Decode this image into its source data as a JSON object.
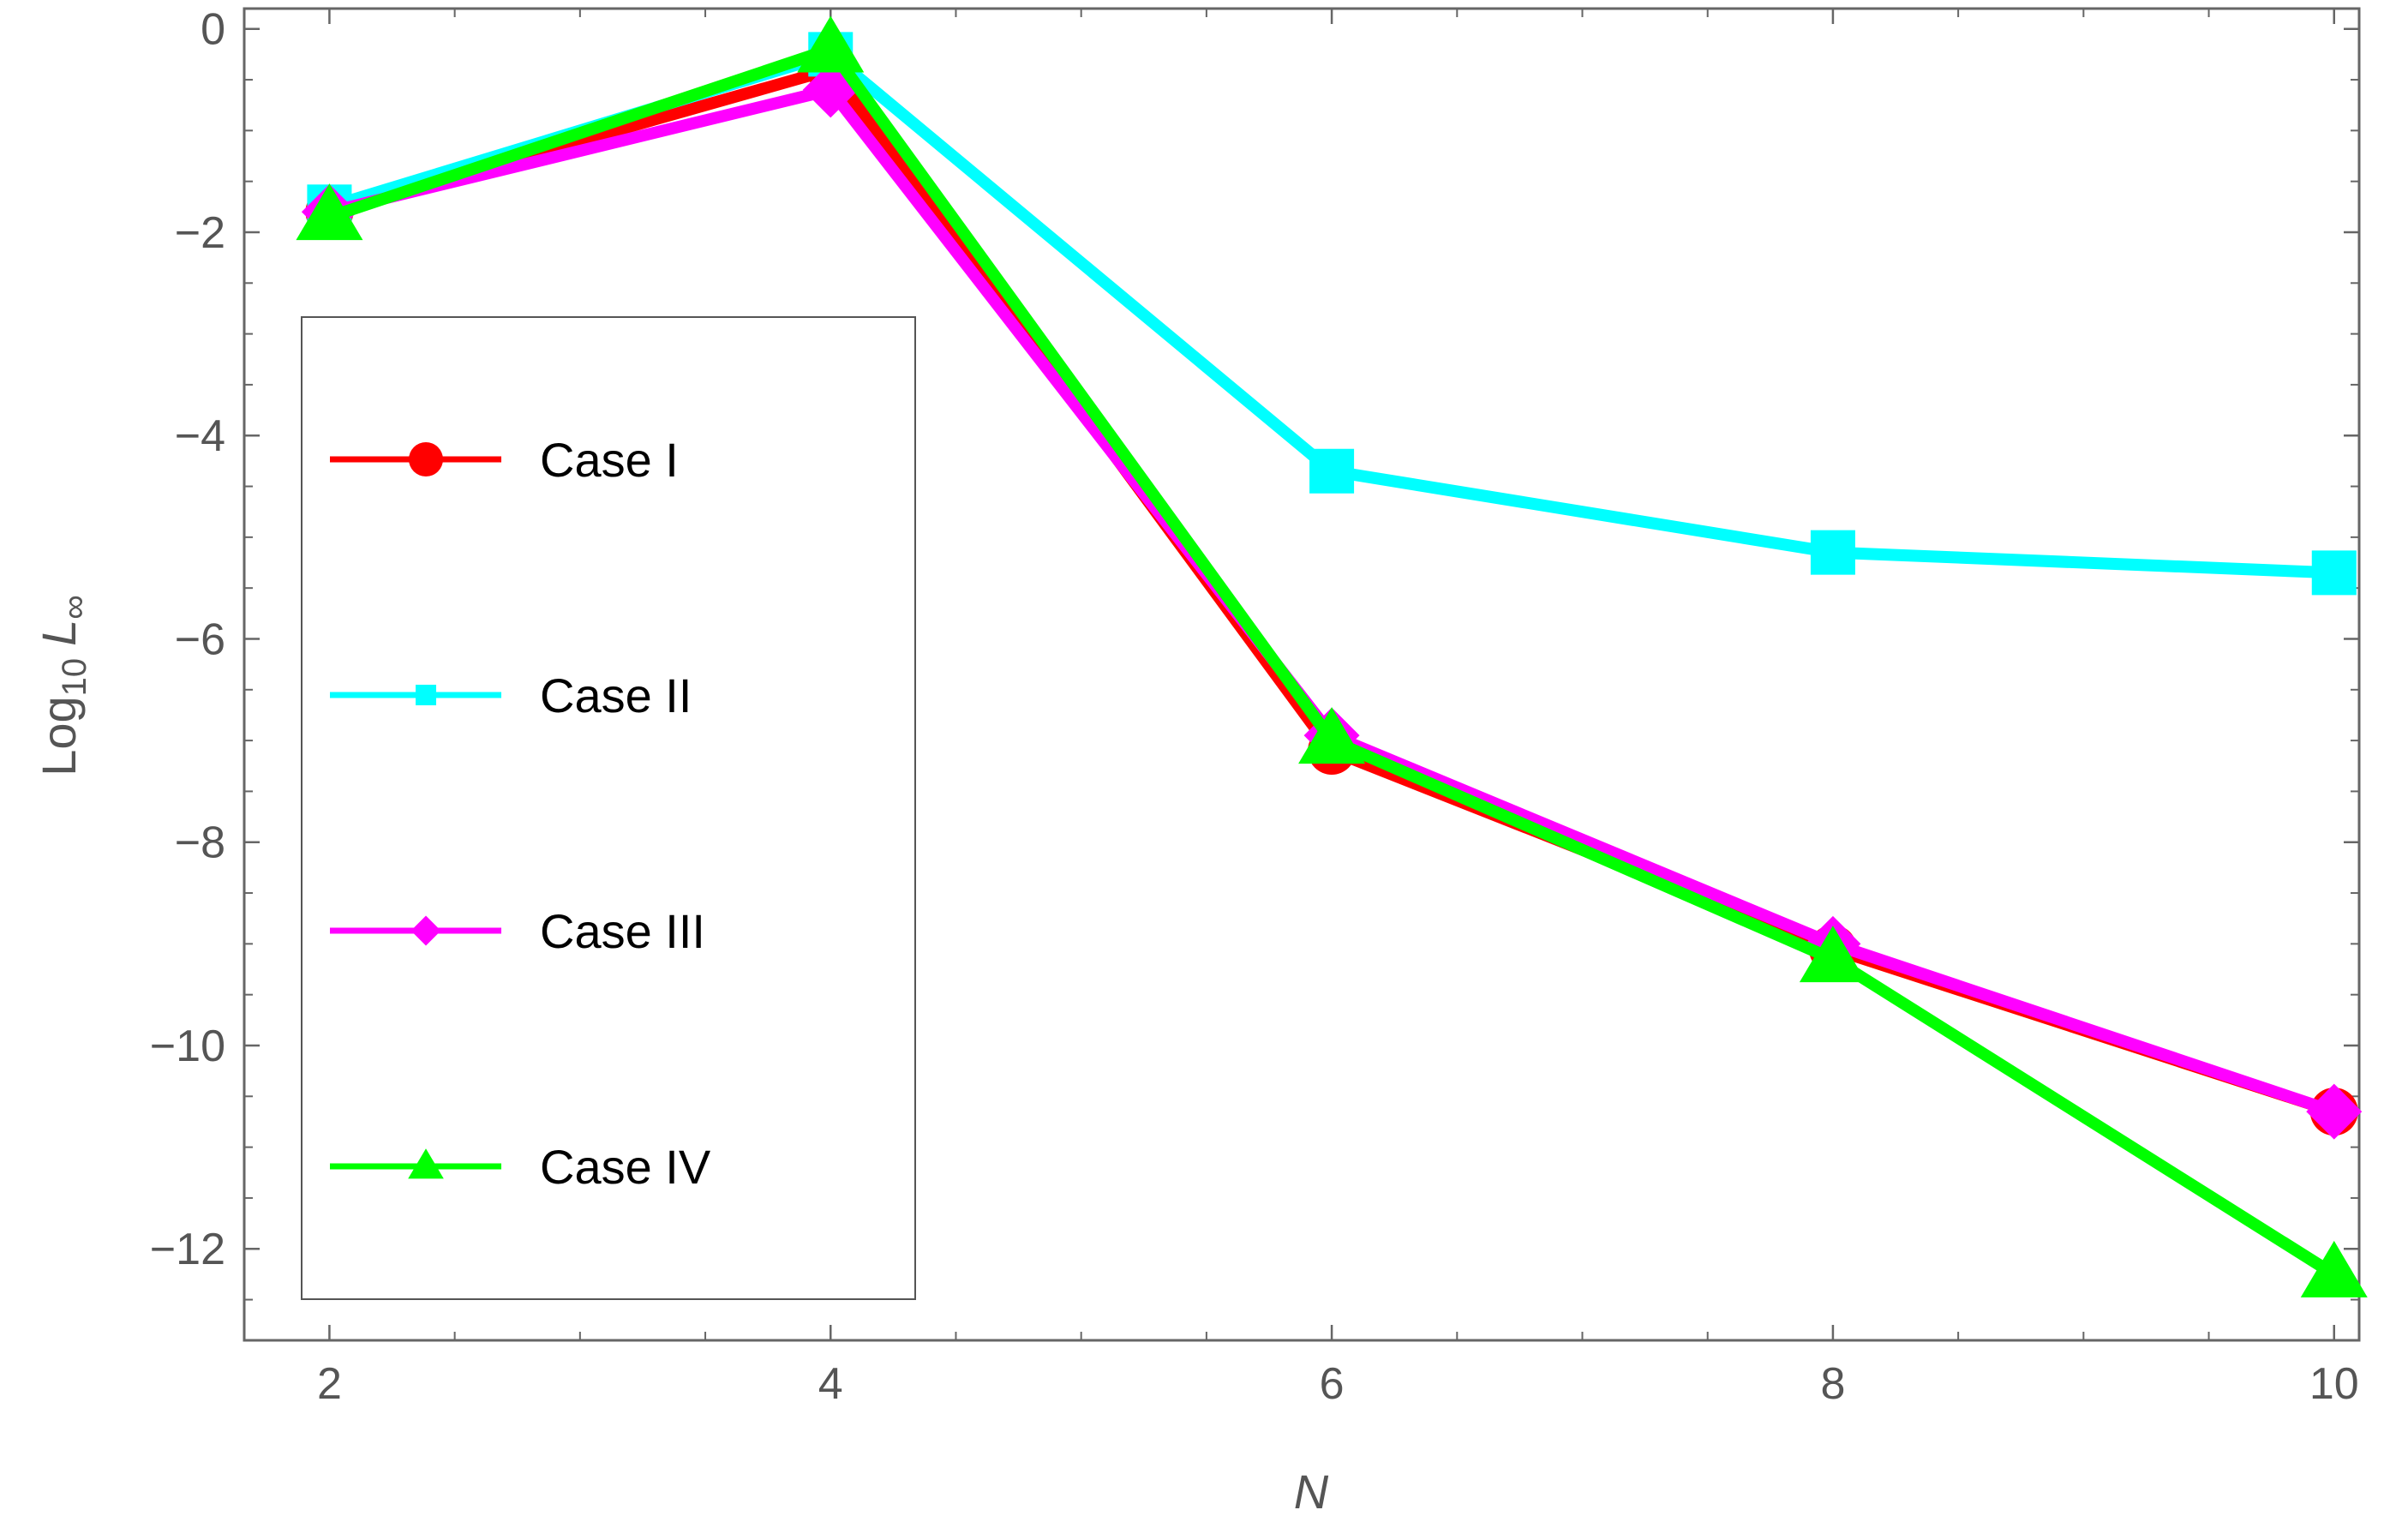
{
  "chart_data": {
    "type": "line",
    "title": "",
    "xlabel": "N",
    "ylabel_main": "Log",
    "ylabel_sub": "10",
    "ylabel_var": "L",
    "ylabel_var_sub": "∞",
    "xlim": [
      1.66,
      10.1
    ],
    "ylim": [
      -12.9,
      0.2
    ],
    "x_ticks": [
      2,
      4,
      6,
      8,
      10
    ],
    "x_tick_labels": [
      "2",
      "4",
      "6",
      "8",
      "10"
    ],
    "y_ticks": [
      0,
      -2,
      -4,
      -6,
      -8,
      -10,
      -12
    ],
    "y_tick_labels": [
      "0",
      "−2",
      "−4",
      "−6",
      "−8",
      "−10",
      "−12"
    ],
    "grid": false,
    "legend_placement": "left",
    "x": [
      2,
      4,
      6,
      8,
      10
    ],
    "series": [
      {
        "name": "Case I",
        "color": "#ff0000",
        "marker": "circle",
        "values": [
          -1.8,
          -0.4,
          -7.1,
          -9.05,
          -10.65
        ]
      },
      {
        "name": "Case II",
        "color": "#00ffff",
        "marker": "square",
        "values": [
          -1.75,
          -0.25,
          -4.35,
          -5.15,
          -5.35
        ]
      },
      {
        "name": "Case III",
        "color": "#ff00ff",
        "marker": "diamond",
        "values": [
          -1.8,
          -0.6,
          -6.95,
          -9.0,
          -10.65
        ]
      },
      {
        "name": "Case IV",
        "color": "#00ff00",
        "marker": "triangle",
        "values": [
          -1.85,
          -0.2,
          -7.0,
          -9.15,
          -12.25
        ]
      }
    ]
  }
}
